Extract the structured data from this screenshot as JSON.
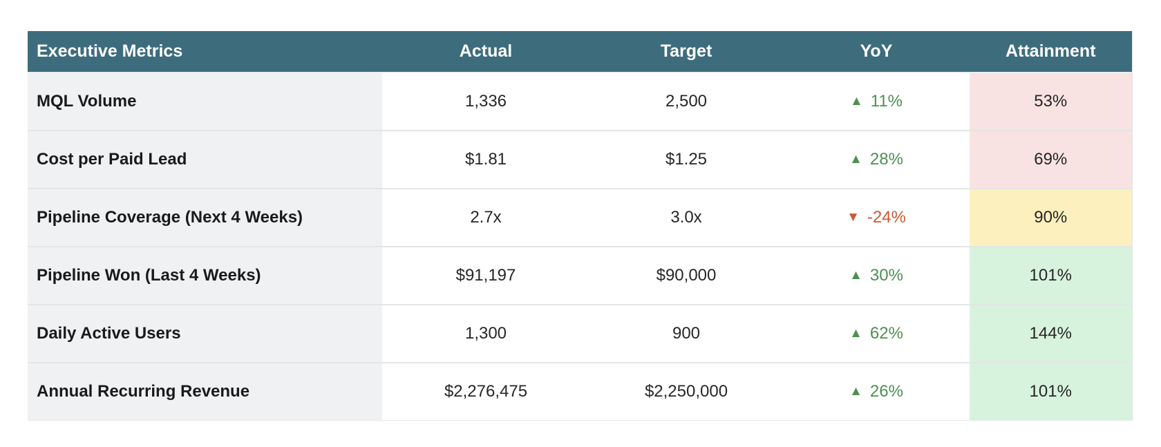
{
  "table": {
    "header": {
      "metric": "Executive Metrics",
      "columns": [
        "Actual",
        "Target",
        "YoY",
        "Attainment"
      ]
    },
    "rows": [
      {
        "metric": "MQL Volume",
        "actual": "1,336",
        "target": "2,500",
        "yoy": "11%",
        "yoy_dir": "up",
        "attainment": "53%",
        "attainment_level": "bad"
      },
      {
        "metric": "Cost per Paid Lead",
        "actual": "$1.81",
        "target": "$1.25",
        "yoy": "28%",
        "yoy_dir": "up",
        "attainment": "69%",
        "attainment_level": "bad"
      },
      {
        "metric": "Pipeline Coverage (Next 4 Weeks)",
        "actual": "2.7x",
        "target": "3.0x",
        "yoy": "-24%",
        "yoy_dir": "down",
        "attainment": "90%",
        "attainment_level": "warn"
      },
      {
        "metric": "Pipeline Won (Last 4 Weeks)",
        "actual": "$91,197",
        "target": "$90,000",
        "yoy": "30%",
        "yoy_dir": "up",
        "attainment": "101%",
        "attainment_level": "good"
      },
      {
        "metric": "Daily Active Users",
        "actual": "1,300",
        "target": "900",
        "yoy": "62%",
        "yoy_dir": "up",
        "attainment": "144%",
        "attainment_level": "good"
      },
      {
        "metric": "Annual Recurring Revenue",
        "actual": "$2,276,475",
        "target": "$2,250,000",
        "yoy": "26%",
        "yoy_dir": "up",
        "attainment": "101%",
        "attainment_level": "good"
      }
    ]
  },
  "icons": {
    "up": "▲",
    "down": "▼"
  },
  "colors": {
    "header_bg": "#3d6c7d",
    "header_text": "#ffffff",
    "metric_col_bg": "#f0f1f3",
    "metric_text": "#1a1a1a",
    "value_text": "#262626",
    "trend_up": "#4d8f51",
    "trend_down": "#c95a35",
    "attainment_bad": "#f9e2e2",
    "attainment_warn": "#fdf0bf",
    "attainment_good": "#d7f3dd",
    "row_border": "#e2e6e4"
  },
  "chart_data": {
    "type": "table",
    "title": "Executive Metrics",
    "columns": [
      "Executive Metrics",
      "Actual",
      "Target",
      "YoY",
      "Attainment"
    ],
    "rows": [
      [
        "MQL Volume",
        "1,336",
        "2,500",
        "▲ 11%",
        "53%"
      ],
      [
        "Cost per Paid Lead",
        "$1.81",
        "$1.25",
        "▲ 28%",
        "69%"
      ],
      [
        "Pipeline Coverage (Next 4 Weeks)",
        "2.7x",
        "3.0x",
        "▼ -24%",
        "90%"
      ],
      [
        "Pipeline Won (Last 4 Weeks)",
        "$91,197",
        "$90,000",
        "▲ 30%",
        "101%"
      ],
      [
        "Daily Active Users",
        "1,300",
        "900",
        "▲ 62%",
        "144%"
      ],
      [
        "Annual Recurring Revenue",
        "$2,276,475",
        "$2,250,000",
        "▲ 26%",
        "101%"
      ]
    ],
    "attainment_color_coding": {
      "53%": "red",
      "69%": "red",
      "90%": "yellow",
      "101%": "green",
      "144%": "green"
    },
    "layout": {
      "header_style": "teal-band",
      "first_column_style": "light-gray-band",
      "grid": "horizontal-only"
    }
  }
}
